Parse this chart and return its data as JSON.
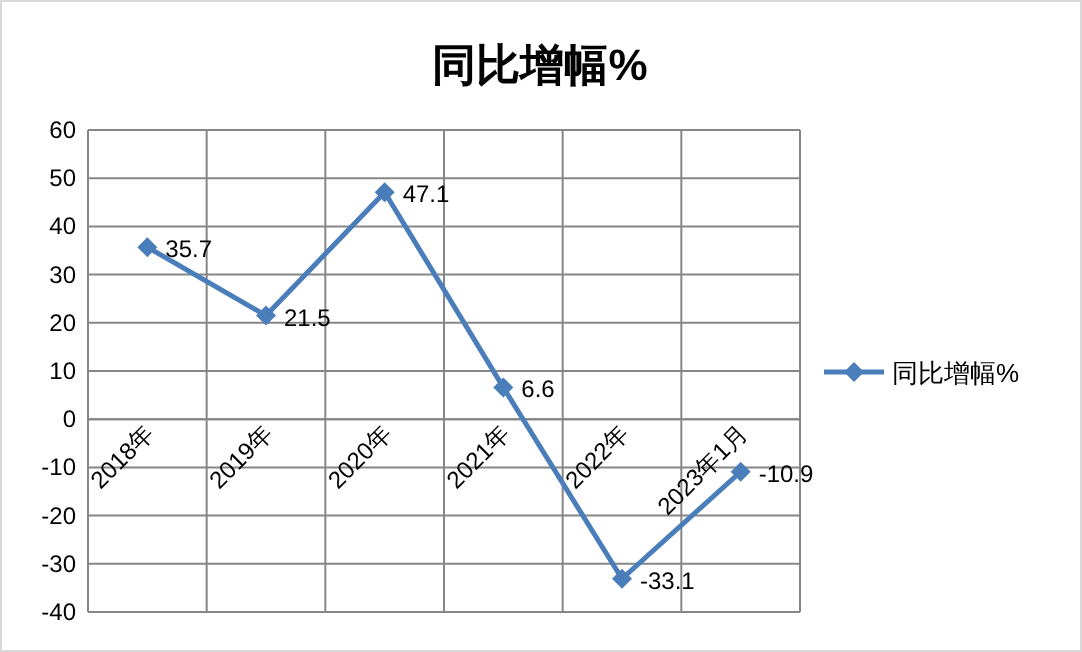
{
  "chart_data": {
    "type": "line",
    "title": "同比增幅%",
    "categories": [
      "2018年",
      "2019年",
      "2020年",
      "2021年",
      "2022年",
      "2023年1月"
    ],
    "series": [
      {
        "name": "同比增幅%",
        "color": "#4a7ebb",
        "values": [
          35.7,
          21.5,
          47.1,
          6.6,
          -33.1,
          -10.9
        ]
      }
    ],
    "ylim": [
      -40,
      60
    ],
    "yticks": [
      -40,
      -30,
      -20,
      -10,
      0,
      10,
      20,
      30,
      40,
      50,
      60
    ],
    "grid": true,
    "legend": "right",
    "marker": "diamond",
    "data_labels": true
  }
}
